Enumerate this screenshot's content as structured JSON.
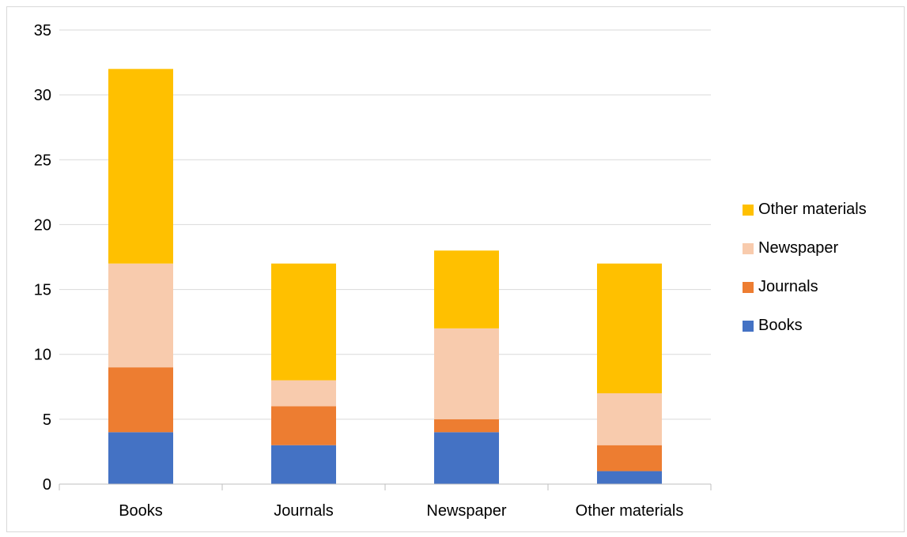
{
  "chart_data": {
    "type": "bar",
    "stacked": true,
    "categories": [
      "Books",
      "Journals",
      "Newspaper",
      "Other materials"
    ],
    "series": [
      {
        "name": "Books",
        "values": [
          4,
          3,
          4,
          1
        ],
        "color": "#4472C4"
      },
      {
        "name": "Journals",
        "values": [
          5,
          3,
          1,
          2
        ],
        "color": "#ED7D31"
      },
      {
        "name": "Newspaper",
        "values": [
          8,
          2,
          7,
          4
        ],
        "color": "#F8CBAD"
      },
      {
        "name": "Other materials",
        "values": [
          15,
          9,
          6,
          10
        ],
        "color": "#FFC000"
      }
    ],
    "ylim": [
      0,
      35
    ],
    "yticks": [
      0,
      5,
      10,
      15,
      20,
      25,
      30,
      35
    ],
    "grid": true,
    "legend_position": "right",
    "legend_order": [
      "Other materials",
      "Newspaper",
      "Journals",
      "Books"
    ],
    "title": "",
    "xlabel": "",
    "ylabel": ""
  }
}
